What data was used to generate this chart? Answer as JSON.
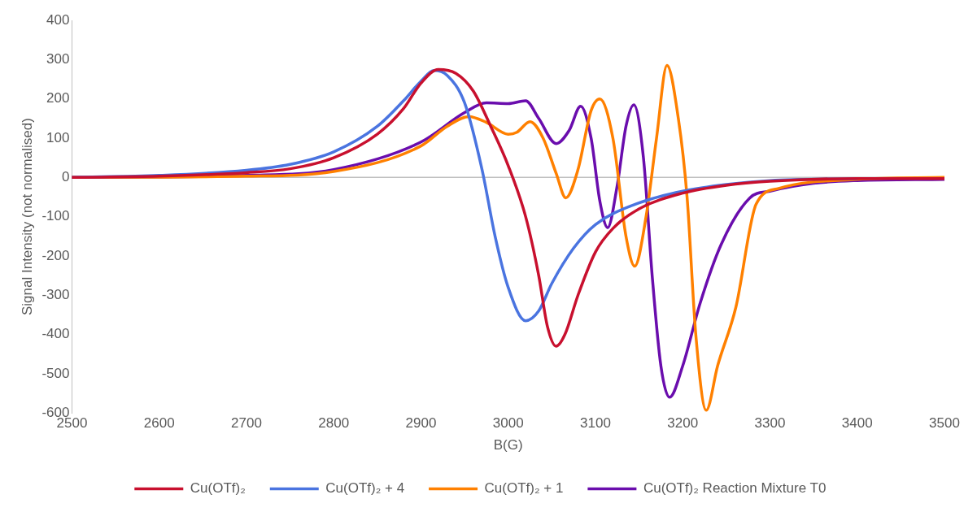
{
  "chart_data": {
    "type": "line",
    "xlabel": "B(G)",
    "ylabel": "Signal Intensity (not normalised)",
    "xlim": [
      2500,
      3500
    ],
    "xticks": [
      2500,
      2600,
      2700,
      2800,
      2900,
      3000,
      3100,
      3200,
      3300,
      3400,
      3500
    ],
    "ylim": [
      -600,
      400
    ],
    "yticks": [
      -600,
      -500,
      -400,
      -300,
      -200,
      -100,
      0,
      100,
      200,
      300,
      400
    ],
    "grid": false,
    "ref_lines": [
      {
        "axis": "y",
        "value": 0,
        "color": "#bfbfbf"
      }
    ],
    "legend": "bottom",
    "marker": "none",
    "line_style": "solid",
    "series": [
      {
        "name": "Cu(OTf)₂",
        "color": "#c8102e",
        "x": [
          2500,
          2600,
          2700,
          2750,
          2800,
          2850,
          2880,
          2900,
          2920,
          2940,
          2960,
          2980,
          3000,
          3020,
          3035,
          3045,
          3055,
          3065,
          3080,
          3100,
          3120,
          3150,
          3200,
          3250,
          3300,
          3400,
          3500
        ],
        "values": [
          0,
          3,
          12,
          22,
          50,
          110,
          175,
          240,
          275,
          265,
          220,
          130,
          30,
          -100,
          -250,
          -380,
          -430,
          -400,
          -300,
          -190,
          -130,
          -80,
          -40,
          -20,
          -10,
          -3,
          -3
        ]
      },
      {
        "name": "Cu(OTf)₂ + 4",
        "color": "#4a74e0",
        "x": [
          2500,
          2600,
          2700,
          2750,
          2800,
          2850,
          2880,
          2900,
          2915,
          2930,
          2950,
          2970,
          2985,
          3000,
          3020,
          3035,
          3050,
          3075,
          3100,
          3150,
          3200,
          3250,
          3300,
          3400
        ],
        "values": [
          0,
          5,
          18,
          33,
          65,
          130,
          195,
          245,
          272,
          260,
          190,
          20,
          -150,
          -280,
          -365,
          -340,
          -270,
          -180,
          -120,
          -65,
          -35,
          -18,
          -8,
          -3
        ]
      },
      {
        "name": "Cu(OTf)₂ + 1",
        "color": "#ff8000",
        "x": [
          2500,
          2700,
          2800,
          2900,
          2930,
          2955,
          2975,
          3000,
          3010,
          3025,
          3040,
          3055,
          3066,
          3080,
          3095,
          3105,
          3120,
          3135,
          3145,
          3158,
          3170,
          3182,
          3195,
          3205,
          3215,
          3227,
          3240,
          3261,
          3284,
          3310,
          3400,
          3500
        ],
        "values": [
          0,
          3,
          15,
          80,
          130,
          155,
          140,
          110,
          115,
          142,
          100,
          10,
          -52,
          20,
          170,
          200,
          100,
          -150,
          -226,
          -100,
          100,
          285,
          150,
          -50,
          -400,
          -593,
          -480,
          -330,
          -69,
          -28,
          -5,
          0
        ]
      },
      {
        "name": "Cu(OTf)₂ Reaction Mixture T0",
        "color": "#6a0dad",
        "x": [
          2500,
          2700,
          2800,
          2900,
          2950,
          2975,
          3000,
          3020,
          3035,
          3055,
          3070,
          3083,
          3095,
          3105,
          3114,
          3125,
          3135,
          3144,
          3155,
          3165,
          3175,
          3185,
          3200,
          3220,
          3244,
          3277,
          3300,
          3350,
          3400,
          3500
        ],
        "values": [
          0,
          5,
          20,
          90,
          165,
          190,
          188,
          195,
          150,
          86,
          120,
          181,
          100,
          -60,
          -128,
          -20,
          130,
          185,
          50,
          -250,
          -480,
          -560,
          -480,
          -320,
          -171,
          -52,
          -35,
          -15,
          -8,
          -5
        ]
      }
    ]
  }
}
